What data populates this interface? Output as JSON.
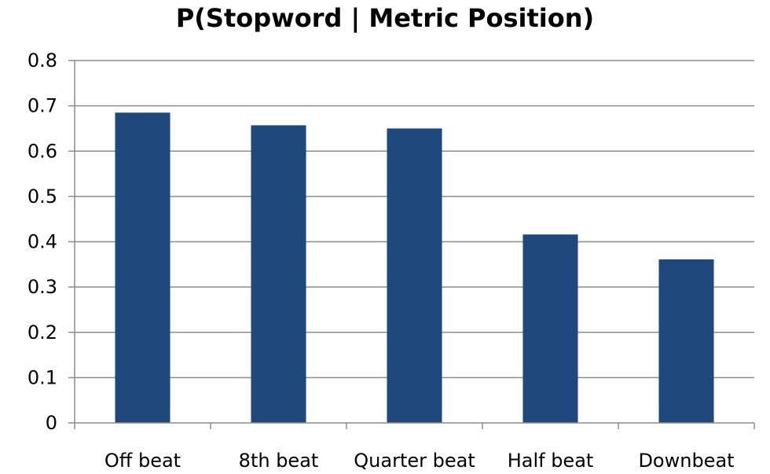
{
  "chart_data": {
    "type": "bar",
    "title": "P(Stopword | Metric Position)",
    "xlabel": "",
    "ylabel": "",
    "categories": [
      "Off beat",
      "8th beat",
      "Quarter beat",
      "Half beat",
      "Downbeat"
    ],
    "values": [
      0.685,
      0.657,
      0.65,
      0.416,
      0.361
    ],
    "ylim": [
      0,
      0.8
    ],
    "yticks": [
      "0",
      "0.1",
      "0.2",
      "0.3",
      "0.4",
      "0.5",
      "0.6",
      "0.7",
      "0.8"
    ],
    "grid": true,
    "legend": "none",
    "bar_color": "#1f497d",
    "grid_color": "#8c8c8c"
  }
}
